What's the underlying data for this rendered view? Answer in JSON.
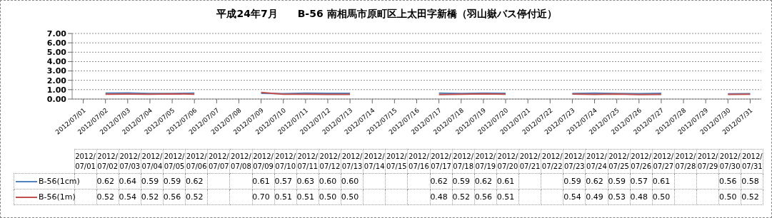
{
  "chart_data": {
    "type": "line",
    "title": "平成24年7月　　B-56 南相馬市原町区上太田字新橋（羽山嶽バス停付近）",
    "categories": [
      "2012/07/01",
      "2012/07/02",
      "2012/07/03",
      "2012/07/04",
      "2012/07/05",
      "2012/07/06",
      "2012/07/07",
      "2012/07/08",
      "2012/07/09",
      "2012/07/10",
      "2012/07/11",
      "2012/07/12",
      "2012/07/13",
      "2012/07/14",
      "2012/07/15",
      "2012/07/16",
      "2012/07/17",
      "2012/07/18",
      "2012/07/19",
      "2012/07/20",
      "2012/07/21",
      "2012/07/22",
      "2012/07/23",
      "2012/07/24",
      "2012/07/25",
      "2012/07/26",
      "2012/07/27",
      "2012/07/28",
      "2012/07/29",
      "2012/07/30",
      "2012/07/31"
    ],
    "series": [
      {
        "name": "B-56(1cm)",
        "color": "#4f81bd",
        "values": [
          null,
          0.62,
          0.64,
          0.59,
          0.59,
          0.62,
          null,
          null,
          0.61,
          0.57,
          0.63,
          0.6,
          0.6,
          null,
          null,
          null,
          0.62,
          0.59,
          0.62,
          0.61,
          null,
          null,
          0.59,
          0.62,
          0.59,
          0.57,
          0.61,
          null,
          null,
          0.56,
          0.58
        ],
        "value_labels": [
          null,
          "0.62",
          "0.64",
          "0.59",
          "0.59",
          "0.62",
          null,
          null,
          "0.61",
          "0.57",
          "0.63",
          "0.60",
          "0.60",
          null,
          null,
          null,
          "0.62",
          "0.59",
          "0.62",
          "0.61",
          null,
          null,
          "0.59",
          "0.62",
          "0.59",
          "0.57",
          "0.61",
          null,
          null,
          "0.56",
          "0.58"
        ]
      },
      {
        "name": "B-56(1m)",
        "color": "#c0504d",
        "values": [
          null,
          0.52,
          0.54,
          0.52,
          0.56,
          0.52,
          null,
          null,
          0.7,
          0.51,
          0.51,
          0.5,
          0.5,
          null,
          null,
          null,
          0.48,
          0.52,
          0.56,
          0.51,
          null,
          null,
          0.54,
          0.49,
          0.53,
          0.48,
          0.5,
          null,
          null,
          0.5,
          0.52
        ],
        "value_labels": [
          null,
          "0.52",
          "0.54",
          "0.52",
          "0.56",
          "0.52",
          null,
          null,
          "0.70",
          "0.51",
          "0.51",
          "0.50",
          "0.50",
          null,
          null,
          null,
          "0.48",
          "0.52",
          "0.56",
          "0.51",
          null,
          null,
          "0.54",
          "0.49",
          "0.53",
          "0.48",
          "0.50",
          null,
          null,
          "0.50",
          "0.52"
        ]
      }
    ],
    "ylim": [
      0,
      7
    ],
    "yticks": [
      {
        "value": 0,
        "label": "0.00"
      },
      {
        "value": 1,
        "label": "1.00"
      },
      {
        "value": 2,
        "label": "2.00"
      },
      {
        "value": 3,
        "label": "3.00"
      },
      {
        "value": 4,
        "label": "4.00"
      },
      {
        "value": 5,
        "label": "5.00"
      },
      {
        "value": 6,
        "label": "6.00"
      },
      {
        "value": 7,
        "label": "7.00"
      }
    ],
    "grid": "y",
    "legend": "bottom",
    "marker": "none",
    "line_style": "solid"
  }
}
